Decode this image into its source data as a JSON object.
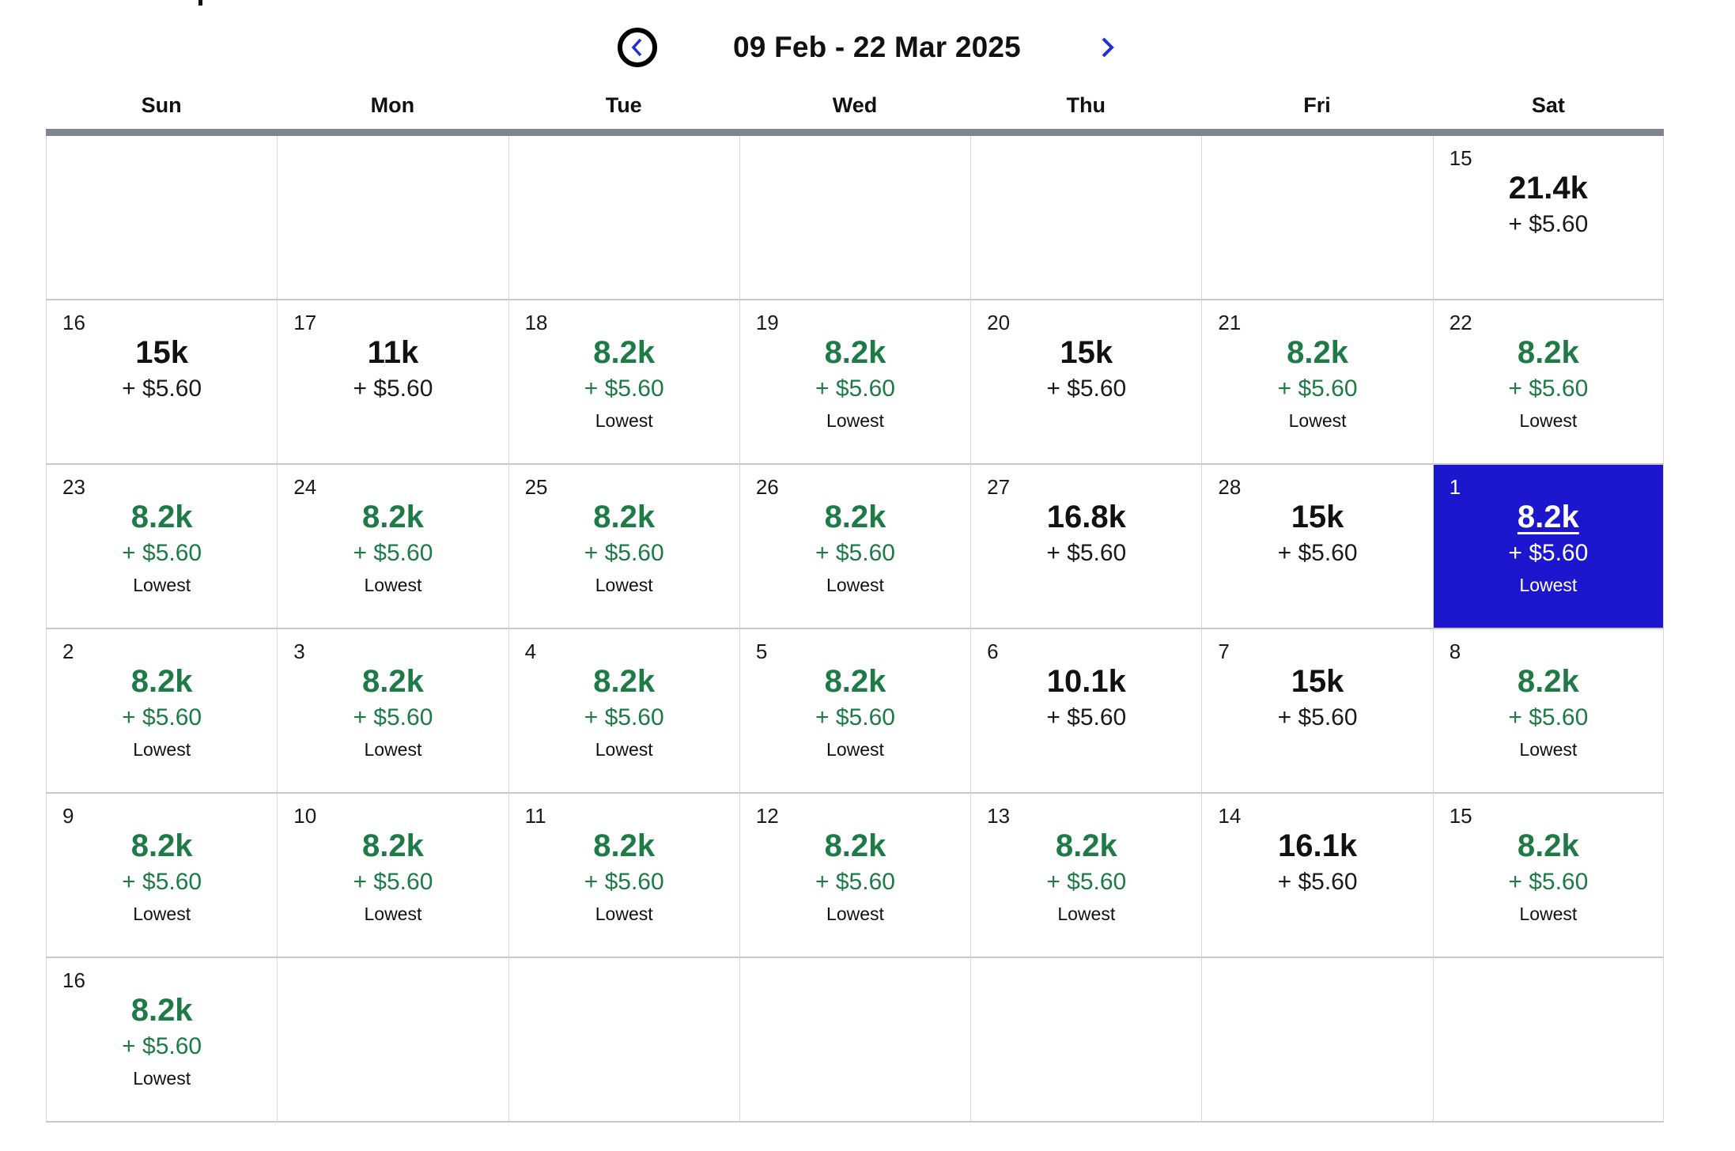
{
  "header": {
    "title": "09 Feb - 22 Mar 2025",
    "prev_icon": "chevron-left-icon",
    "next_icon": "chevron-right-icon"
  },
  "weekdays": [
    "Sun",
    "Mon",
    "Tue",
    "Wed",
    "Thu",
    "Fri",
    "Sat"
  ],
  "labels": {
    "lowest": "Lowest"
  },
  "colors": {
    "lowest_green": "#1e7a46",
    "selected_blue": "#1c17cf",
    "nav_arrow_blue": "#2330d4",
    "grid_top_bar_gray": "#7d868c",
    "cell_border_gray": "#d9d9d9"
  },
  "weeks": [
    [
      {
        "day": "",
        "price": "",
        "fee": "",
        "lowest": false,
        "selected": false
      },
      {
        "day": "",
        "price": "",
        "fee": "",
        "lowest": false,
        "selected": false
      },
      {
        "day": "",
        "price": "",
        "fee": "",
        "lowest": false,
        "selected": false
      },
      {
        "day": "",
        "price": "",
        "fee": "",
        "lowest": false,
        "selected": false
      },
      {
        "day": "",
        "price": "",
        "fee": "",
        "lowest": false,
        "selected": false
      },
      {
        "day": "",
        "price": "",
        "fee": "",
        "lowest": false,
        "selected": false
      },
      {
        "day": "15",
        "price": "21.4k",
        "fee": "+ $5.60",
        "lowest": false,
        "selected": false
      }
    ],
    [
      {
        "day": "16",
        "price": "15k",
        "fee": "+ $5.60",
        "lowest": false,
        "selected": false
      },
      {
        "day": "17",
        "price": "11k",
        "fee": "+ $5.60",
        "lowest": false,
        "selected": false
      },
      {
        "day": "18",
        "price": "8.2k",
        "fee": "+ $5.60",
        "lowest": true,
        "selected": false
      },
      {
        "day": "19",
        "price": "8.2k",
        "fee": "+ $5.60",
        "lowest": true,
        "selected": false
      },
      {
        "day": "20",
        "price": "15k",
        "fee": "+ $5.60",
        "lowest": false,
        "selected": false
      },
      {
        "day": "21",
        "price": "8.2k",
        "fee": "+ $5.60",
        "lowest": true,
        "selected": false
      },
      {
        "day": "22",
        "price": "8.2k",
        "fee": "+ $5.60",
        "lowest": true,
        "selected": false
      }
    ],
    [
      {
        "day": "23",
        "price": "8.2k",
        "fee": "+ $5.60",
        "lowest": true,
        "selected": false
      },
      {
        "day": "24",
        "price": "8.2k",
        "fee": "+ $5.60",
        "lowest": true,
        "selected": false
      },
      {
        "day": "25",
        "price": "8.2k",
        "fee": "+ $5.60",
        "lowest": true,
        "selected": false
      },
      {
        "day": "26",
        "price": "8.2k",
        "fee": "+ $5.60",
        "lowest": true,
        "selected": false
      },
      {
        "day": "27",
        "price": "16.8k",
        "fee": "+ $5.60",
        "lowest": false,
        "selected": false
      },
      {
        "day": "28",
        "price": "15k",
        "fee": "+ $5.60",
        "lowest": false,
        "selected": false
      },
      {
        "day": "1",
        "price": "8.2k",
        "fee": "+ $5.60",
        "lowest": true,
        "selected": true
      }
    ],
    [
      {
        "day": "2",
        "price": "8.2k",
        "fee": "+ $5.60",
        "lowest": true,
        "selected": false
      },
      {
        "day": "3",
        "price": "8.2k",
        "fee": "+ $5.60",
        "lowest": true,
        "selected": false
      },
      {
        "day": "4",
        "price": "8.2k",
        "fee": "+ $5.60",
        "lowest": true,
        "selected": false
      },
      {
        "day": "5",
        "price": "8.2k",
        "fee": "+ $5.60",
        "lowest": true,
        "selected": false
      },
      {
        "day": "6",
        "price": "10.1k",
        "fee": "+ $5.60",
        "lowest": false,
        "selected": false
      },
      {
        "day": "7",
        "price": "15k",
        "fee": "+ $5.60",
        "lowest": false,
        "selected": false
      },
      {
        "day": "8",
        "price": "8.2k",
        "fee": "+ $5.60",
        "lowest": true,
        "selected": false
      }
    ],
    [
      {
        "day": "9",
        "price": "8.2k",
        "fee": "+ $5.60",
        "lowest": true,
        "selected": false
      },
      {
        "day": "10",
        "price": "8.2k",
        "fee": "+ $5.60",
        "lowest": true,
        "selected": false
      },
      {
        "day": "11",
        "price": "8.2k",
        "fee": "+ $5.60",
        "lowest": true,
        "selected": false
      },
      {
        "day": "12",
        "price": "8.2k",
        "fee": "+ $5.60",
        "lowest": true,
        "selected": false
      },
      {
        "day": "13",
        "price": "8.2k",
        "fee": "+ $5.60",
        "lowest": true,
        "selected": false
      },
      {
        "day": "14",
        "price": "16.1k",
        "fee": "+ $5.60",
        "lowest": false,
        "selected": false
      },
      {
        "day": "15",
        "price": "8.2k",
        "fee": "+ $5.60",
        "lowest": true,
        "selected": false
      }
    ],
    [
      {
        "day": "16",
        "price": "8.2k",
        "fee": "+ $5.60",
        "lowest": true,
        "selected": false
      },
      {
        "day": "",
        "price": "",
        "fee": "",
        "lowest": false,
        "selected": false
      },
      {
        "day": "",
        "price": "",
        "fee": "",
        "lowest": false,
        "selected": false
      },
      {
        "day": "",
        "price": "",
        "fee": "",
        "lowest": false,
        "selected": false
      },
      {
        "day": "",
        "price": "",
        "fee": "",
        "lowest": false,
        "selected": false
      },
      {
        "day": "",
        "price": "",
        "fee": "",
        "lowest": false,
        "selected": false
      },
      {
        "day": "",
        "price": "",
        "fee": "",
        "lowest": false,
        "selected": false
      }
    ]
  ]
}
